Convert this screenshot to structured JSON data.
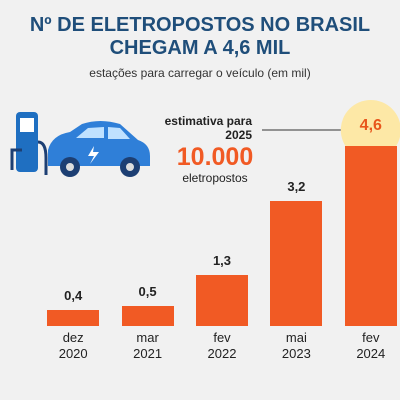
{
  "chart_data": {
    "type": "bar",
    "title": "Nº DE ELETROPOSTOS NO BRASIL CHEGAM A 4,6 MIL",
    "subtitle": "estações para carregar o veículo (em mil)",
    "categories": [
      "dez 2020",
      "mar 2021",
      "fev 2022",
      "mai 2023",
      "fev 2024"
    ],
    "values": [
      0.4,
      0.5,
      1.3,
      3.2,
      4.6
    ],
    "value_labels": [
      "0,4",
      "0,5",
      "1,3",
      "3,2",
      "4,6"
    ],
    "color": "#f15a24",
    "annotation": {
      "heading": "estimativa para 2025",
      "value": "10.000",
      "unit": "eletropostos"
    }
  }
}
